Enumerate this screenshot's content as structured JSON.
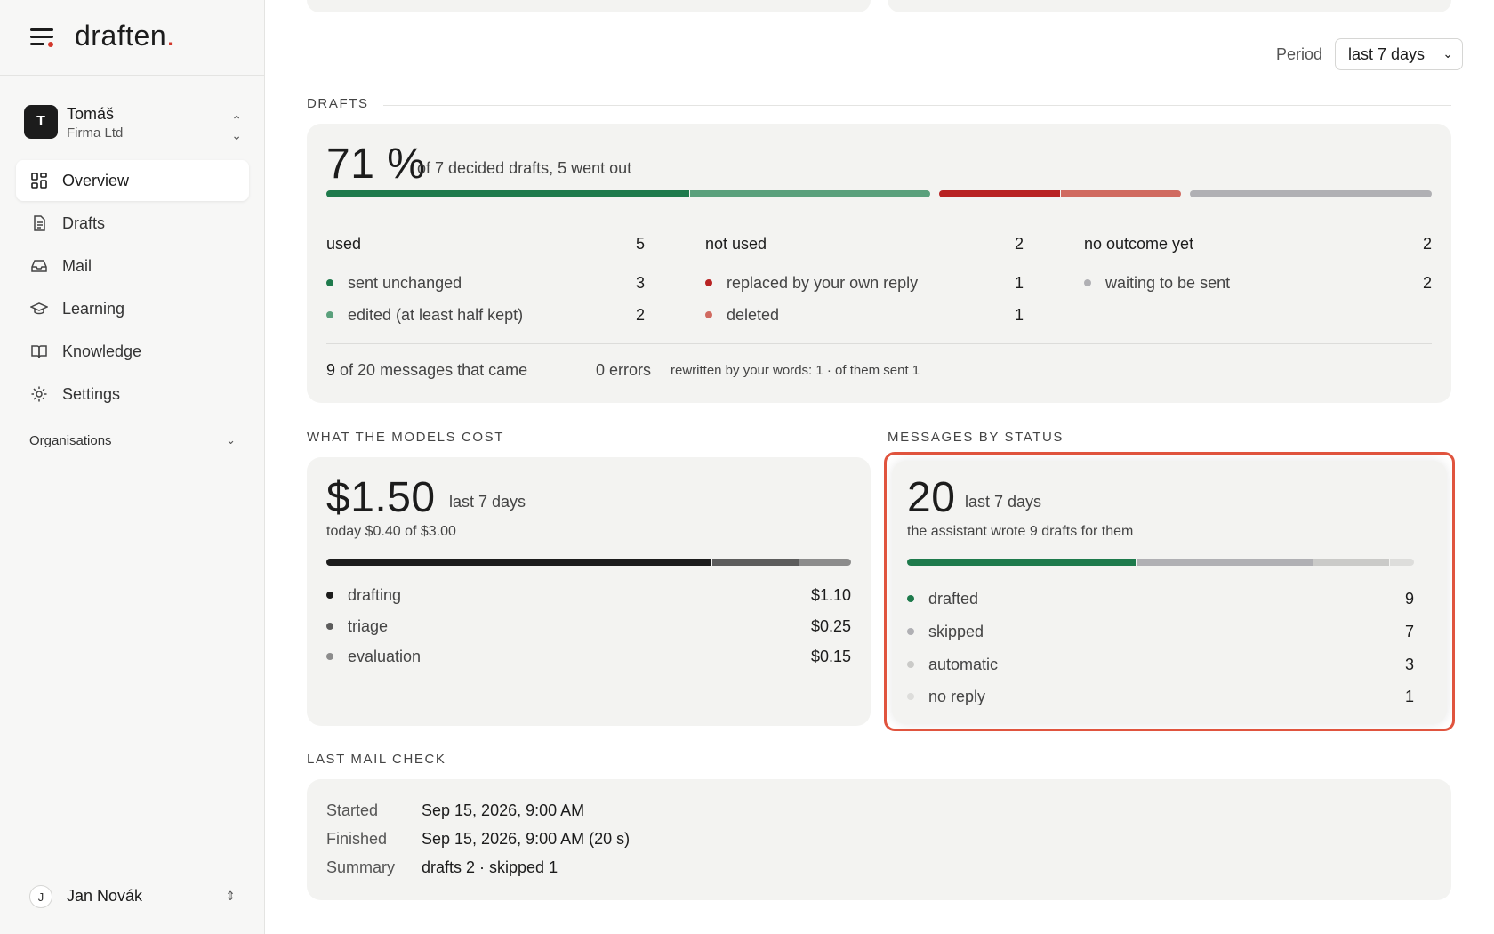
{
  "sidebar": {
    "brand": "draften",
    "account": {
      "initial": "T",
      "name": "Tomáš",
      "org": "Firma Ltd"
    },
    "nav": [
      {
        "label": "Overview",
        "icon": "grid-icon"
      },
      {
        "label": "Drafts",
        "icon": "document-icon"
      },
      {
        "label": "Mail",
        "icon": "inbox-icon"
      },
      {
        "label": "Learning",
        "icon": "graduation-cap-icon"
      },
      {
        "label": "Knowledge",
        "icon": "book-icon"
      },
      {
        "label": "Settings",
        "icon": "gear-icon"
      }
    ],
    "organisations_label": "Organisations",
    "user": {
      "initial": "J",
      "name": "Jan Novák"
    }
  },
  "period": {
    "label": "Period",
    "value": "last 7 days"
  },
  "drafts": {
    "section_title": "DRAFTS",
    "headline": "71 %",
    "subtitle": "of 7 decided drafts, 5 went out",
    "bar_fractions": {
      "sent_unchanged": 3,
      "edited": 2,
      "replaced": 1,
      "deleted": 1,
      "waiting": 2
    },
    "columns": [
      {
        "title": "used",
        "total": "5",
        "rows": [
          {
            "label": "sent unchanged",
            "value": "3",
            "color": "#1e7a4c"
          },
          {
            "label": "edited (at least half kept)",
            "value": "2",
            "color": "#5aa07c"
          }
        ]
      },
      {
        "title": "not used",
        "total": "2",
        "rows": [
          {
            "label": "replaced by your own reply",
            "value": "1",
            "color": "#b82323"
          },
          {
            "label": "deleted",
            "value": "1",
            "color": "#d06a60"
          }
        ]
      },
      {
        "title": "no outcome yet",
        "total": "2",
        "rows": [
          {
            "label": "waiting to be sent",
            "value": "2",
            "color": "#b0b0b4"
          }
        ]
      }
    ],
    "footer": {
      "count": "9",
      "messages": "of 20 messages that came",
      "errors": "0 errors",
      "rewritten": "rewritten by your words: 1 · of them sent 1"
    }
  },
  "cost": {
    "section_title": "WHAT THE MODELS COST",
    "amount": "$1.50",
    "period": "last 7 days",
    "today": "today $0.40 of $3.00",
    "items": [
      {
        "label": "drafting",
        "value": "$1.10",
        "amount": 1.1,
        "color": "#1c1c1c"
      },
      {
        "label": "triage",
        "value": "$0.25",
        "amount": 0.25,
        "color": "#5c5c5c"
      },
      {
        "label": "evaluation",
        "value": "$0.15",
        "amount": 0.15,
        "color": "#8c8c8c"
      }
    ]
  },
  "status": {
    "section_title": "MESSAGES BY STATUS",
    "count": "20",
    "period": "last 7 days",
    "note": "the assistant wrote 9 drafts for them",
    "items": [
      {
        "label": "drafted",
        "value": "9",
        "amount": 9,
        "color": "#1e7a4c"
      },
      {
        "label": "skipped",
        "value": "7",
        "amount": 7,
        "color": "#b0b0b4"
      },
      {
        "label": "automatic",
        "value": "3",
        "amount": 3,
        "color": "#cacac8"
      },
      {
        "label": "no reply",
        "value": "1",
        "amount": 1,
        "color": "#dddddb"
      }
    ]
  },
  "mail_check": {
    "section_title": "LAST MAIL CHECK",
    "rows": [
      {
        "label": "Started",
        "value": "Sep 15, 2026, 9:00 AM"
      },
      {
        "label": "Finished",
        "value": "Sep 15, 2026, 9:00 AM (20 s)"
      },
      {
        "label": "Summary",
        "value": "drafts 2 · skipped 1"
      }
    ]
  }
}
